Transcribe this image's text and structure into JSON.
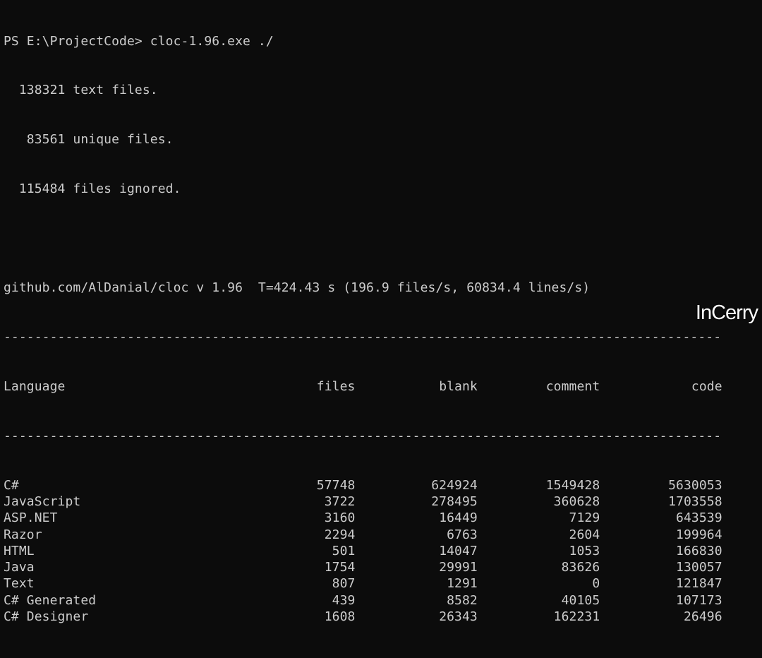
{
  "prompt": "PS E:\\ProjectCode> cloc-1.96.exe ./",
  "summary": [
    "  138321 text files.",
    "   83561 unique files.",
    "  115484 files ignored."
  ],
  "header_line": "github.com/AlDanial/cloc v 1.96  T=424.43 s (196.9 files/s, 60834.4 lines/s)",
  "columns": [
    "Language",
    "files",
    "blank",
    "comment",
    "code"
  ],
  "rows": [
    [
      "C#",
      "57748",
      "624924",
      "1549428",
      "5630053"
    ],
    [
      "JavaScript",
      "3722",
      "278495",
      "360628",
      "1703558"
    ],
    [
      "ASP.NET",
      "3160",
      "16449",
      "7129",
      "643539"
    ],
    [
      "Razor",
      "2294",
      "6763",
      "2604",
      "199964"
    ],
    [
      "HTML",
      "501",
      "14047",
      "1053",
      "166830"
    ],
    [
      "Java",
      "1754",
      "29991",
      "83626",
      "130057"
    ],
    [
      "Text",
      "807",
      "1291",
      "0",
      "121847"
    ],
    [
      "C# Generated",
      "439",
      "8582",
      "40105",
      "107173"
    ],
    [
      "C# Designer",
      "1608",
      "26343",
      "162231",
      "26496"
    ]
  ],
  "ellipsis": "......",
  "watermark": "InCerry"
}
